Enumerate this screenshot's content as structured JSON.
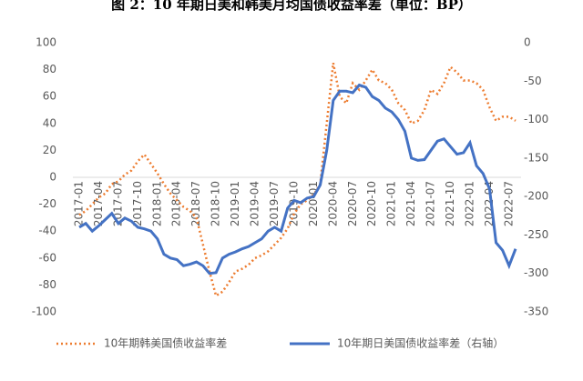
{
  "chart_data": {
    "type": "line",
    "title": "图 2：10 年期日美和韩美月均国债收益率差（单位：BP）",
    "categories": [
      "2017-01",
      null,
      null,
      "2017-04",
      null,
      null,
      "2017-07",
      null,
      null,
      "2017-10",
      null,
      null,
      "2018-01",
      null,
      null,
      "2018-04",
      null,
      null,
      "2018-07",
      null,
      null,
      "2018-10",
      null,
      null,
      "2019-01",
      null,
      null,
      "2019-04",
      null,
      null,
      "2019-07",
      null,
      null,
      "2019-10",
      null,
      null,
      "2020-01",
      null,
      null,
      "2020-04",
      null,
      null,
      "2020-07",
      null,
      null,
      "2020-10",
      null,
      null,
      "2021-01",
      null,
      null,
      "2021-04",
      null,
      null,
      "2021-07",
      null,
      null,
      "2021-10",
      null,
      null,
      "2022-01",
      null,
      null,
      "2022-04",
      null,
      null,
      "2022-07",
      null
    ],
    "series": [
      {
        "name": "10年期韩美国债收益率差",
        "color": "#ed7d31",
        "dashed": true,
        "values": [
          -28,
          -25,
          -20,
          -15,
          -12,
          -5,
          -3,
          2,
          5,
          12,
          17,
          10,
          3,
          -5,
          -12,
          -17,
          -22,
          -25,
          -30,
          -50,
          -70,
          -88,
          -85,
          -78,
          -70,
          -68,
          -65,
          -60,
          -58,
          -55,
          -50,
          -45,
          -38,
          -27,
          -20,
          -17,
          -13,
          -5,
          40,
          85,
          60,
          55,
          70,
          65,
          72,
          80,
          72,
          70,
          65,
          55,
          50,
          40,
          42,
          50,
          65,
          62,
          70,
          82,
          78,
          72,
          72,
          70,
          65,
          52,
          42,
          45,
          45,
          42
        ]
      },
      {
        "name": "10年期日美国债收益率差（右轴）",
        "color": "#4472c4",
        "axis": "y2",
        "values": [
          -240,
          -235,
          -245,
          -238,
          -230,
          -222,
          -235,
          -228,
          -232,
          -240,
          -242,
          -245,
          -255,
          -275,
          -280,
          -282,
          -290,
          -288,
          -285,
          -290,
          -300,
          -299,
          -280,
          -275,
          -272,
          -268,
          -265,
          -260,
          -255,
          -245,
          -240,
          -245,
          -215,
          -205,
          -208,
          -202,
          -200,
          -185,
          -140,
          -75,
          -63,
          -63,
          -65,
          -55,
          -58,
          -70,
          -75,
          -85,
          -90,
          -100,
          -115,
          -150,
          -153,
          -152,
          -140,
          -128,
          -125,
          -135,
          -145,
          -143,
          -130,
          -160,
          -170,
          -190,
          -260,
          -270,
          -290,
          -268
        ]
      }
    ],
    "ylim": [
      -100,
      100
    ],
    "yticks": [
      -100,
      -80,
      -60,
      -40,
      -20,
      0,
      20,
      40,
      60,
      80,
      100
    ],
    "y2lim": [
      -350,
      0
    ],
    "y2ticks": [
      -350,
      -300,
      -250,
      -200,
      -150,
      -100,
      -50,
      0
    ]
  }
}
